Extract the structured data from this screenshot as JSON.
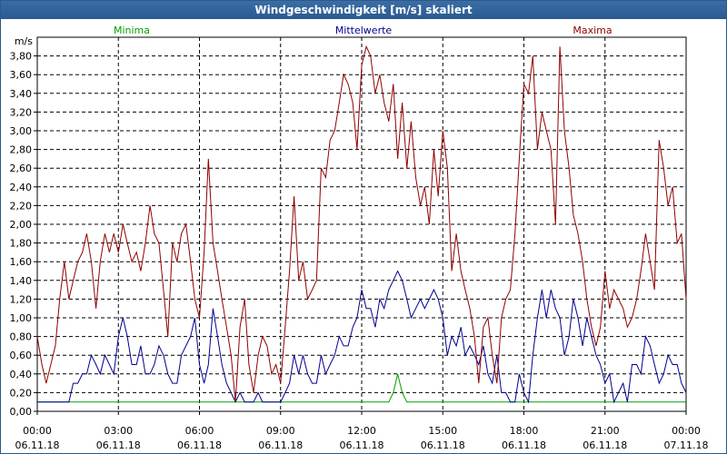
{
  "window": {
    "title": "Windgeschwindigkeit [m/s] skaliert"
  },
  "legend": {
    "minima": {
      "label": "Minima",
      "color": "#00a000"
    },
    "mittelwerte": {
      "label": "Mittelwerte",
      "color": "#000090"
    },
    "maxima": {
      "label": "Maxima",
      "color": "#900000"
    }
  },
  "chart_data": {
    "type": "line",
    "title": "Windgeschwindigkeit [m/s] skaliert",
    "ylabel": "m/s",
    "xlabel": "",
    "ylim": [
      0,
      4.0
    ],
    "xlim_hours": [
      0,
      24
    ],
    "grid": true,
    "legend_placement": "top",
    "y_ticks": [
      "0,00",
      "0,20",
      "0,40",
      "0,60",
      "0,80",
      "1,00",
      "1,20",
      "1,40",
      "1,60",
      "1,80",
      "2,00",
      "2,20",
      "2,40",
      "2,60",
      "2,80",
      "3,00",
      "3,20",
      "3,40",
      "3,60",
      "3,80"
    ],
    "x_ticks": [
      {
        "time": "00:00",
        "date": "06.11.18"
      },
      {
        "time": "03:00",
        "date": "06.11.18"
      },
      {
        "time": "06:00",
        "date": "06.11.18"
      },
      {
        "time": "09:00",
        "date": "06.11.18"
      },
      {
        "time": "12:00",
        "date": "06.11.18"
      },
      {
        "time": "15:00",
        "date": "06.11.18"
      },
      {
        "time": "18:00",
        "date": "06.11.18"
      },
      {
        "time": "21:00",
        "date": "06.11.18"
      },
      {
        "time": "00:00",
        "date": "07.11.18"
      }
    ],
    "series": [
      {
        "name": "Minima",
        "color": "#00a000",
        "points": [
          [
            0,
            0.1
          ],
          [
            13.0,
            0.1
          ],
          [
            13.17,
            0.2
          ],
          [
            13.33,
            0.4
          ],
          [
            13.5,
            0.2
          ],
          [
            13.67,
            0.1
          ],
          [
            24,
            0.1
          ]
        ]
      },
      {
        "name": "Mittelwerte",
        "color": "#000090",
        "points": [
          [
            0,
            0.1
          ],
          [
            1.17,
            0.1
          ],
          [
            1.33,
            0.3
          ],
          [
            1.5,
            0.3
          ],
          [
            1.67,
            0.4
          ],
          [
            1.83,
            0.4
          ],
          [
            2.0,
            0.6
          ],
          [
            2.17,
            0.5
          ],
          [
            2.33,
            0.4
          ],
          [
            2.5,
            0.6
          ],
          [
            2.67,
            0.5
          ],
          [
            2.83,
            0.4
          ],
          [
            3.0,
            0.8
          ],
          [
            3.17,
            1.0
          ],
          [
            3.33,
            0.8
          ],
          [
            3.5,
            0.5
          ],
          [
            3.67,
            0.5
          ],
          [
            3.83,
            0.7
          ],
          [
            4.0,
            0.4
          ],
          [
            4.17,
            0.4
          ],
          [
            4.33,
            0.5
          ],
          [
            4.5,
            0.7
          ],
          [
            4.67,
            0.6
          ],
          [
            4.83,
            0.4
          ],
          [
            5.0,
            0.3
          ],
          [
            5.17,
            0.3
          ],
          [
            5.33,
            0.6
          ],
          [
            5.5,
            0.7
          ],
          [
            5.67,
            0.8
          ],
          [
            5.83,
            1.0
          ],
          [
            6.0,
            0.5
          ],
          [
            6.17,
            0.3
          ],
          [
            6.33,
            0.5
          ],
          [
            6.5,
            1.1
          ],
          [
            6.67,
            0.8
          ],
          [
            6.83,
            0.5
          ],
          [
            7.0,
            0.3
          ],
          [
            7.17,
            0.2
          ],
          [
            7.33,
            0.1
          ],
          [
            7.5,
            0.2
          ],
          [
            7.67,
            0.1
          ],
          [
            7.83,
            0.1
          ],
          [
            8.0,
            0.1
          ],
          [
            8.17,
            0.2
          ],
          [
            8.33,
            0.1
          ],
          [
            8.5,
            0.1
          ],
          [
            8.67,
            0.1
          ],
          [
            9.0,
            0.1
          ],
          [
            9.17,
            0.2
          ],
          [
            9.33,
            0.3
          ],
          [
            9.5,
            0.6
          ],
          [
            9.67,
            0.4
          ],
          [
            9.83,
            0.6
          ],
          [
            10.0,
            0.4
          ],
          [
            10.17,
            0.3
          ],
          [
            10.33,
            0.3
          ],
          [
            10.5,
            0.6
          ],
          [
            10.67,
            0.4
          ],
          [
            10.83,
            0.5
          ],
          [
            11.0,
            0.6
          ],
          [
            11.17,
            0.8
          ],
          [
            11.33,
            0.7
          ],
          [
            11.5,
            0.7
          ],
          [
            11.67,
            0.9
          ],
          [
            11.83,
            1.0
          ],
          [
            12.0,
            1.3
          ],
          [
            12.17,
            1.1
          ],
          [
            12.33,
            1.1
          ],
          [
            12.5,
            0.9
          ],
          [
            12.67,
            1.2
          ],
          [
            12.83,
            1.1
          ],
          [
            13.0,
            1.3
          ],
          [
            13.17,
            1.4
          ],
          [
            13.33,
            1.5
          ],
          [
            13.5,
            1.4
          ],
          [
            13.67,
            1.2
          ],
          [
            13.83,
            1.0
          ],
          [
            14.0,
            1.1
          ],
          [
            14.17,
            1.2
          ],
          [
            14.33,
            1.1
          ],
          [
            14.5,
            1.2
          ],
          [
            14.67,
            1.3
          ],
          [
            14.83,
            1.2
          ],
          [
            15.0,
            1.0
          ],
          [
            15.17,
            0.6
          ],
          [
            15.33,
            0.8
          ],
          [
            15.5,
            0.7
          ],
          [
            15.67,
            0.9
          ],
          [
            15.83,
            0.6
          ],
          [
            16.0,
            0.7
          ],
          [
            16.17,
            0.6
          ],
          [
            16.33,
            0.5
          ],
          [
            16.5,
            0.7
          ],
          [
            16.67,
            0.4
          ],
          [
            16.83,
            0.3
          ],
          [
            17.0,
            0.6
          ],
          [
            17.17,
            0.2
          ],
          [
            17.33,
            0.2
          ],
          [
            17.5,
            0.1
          ],
          [
            17.67,
            0.1
          ],
          [
            17.83,
            0.4
          ],
          [
            18.0,
            0.2
          ],
          [
            18.17,
            0.1
          ],
          [
            18.33,
            0.6
          ],
          [
            18.5,
            1.0
          ],
          [
            18.67,
            1.3
          ],
          [
            18.83,
            1.0
          ],
          [
            19.0,
            1.3
          ],
          [
            19.17,
            1.1
          ],
          [
            19.33,
            1.0
          ],
          [
            19.5,
            0.6
          ],
          [
            19.67,
            0.8
          ],
          [
            19.83,
            1.2
          ],
          [
            20.0,
            1.0
          ],
          [
            20.17,
            0.7
          ],
          [
            20.33,
            1.0
          ],
          [
            20.5,
            0.8
          ],
          [
            20.67,
            0.6
          ],
          [
            20.83,
            0.5
          ],
          [
            21.0,
            0.3
          ],
          [
            21.17,
            0.4
          ],
          [
            21.33,
            0.1
          ],
          [
            21.5,
            0.2
          ],
          [
            21.67,
            0.3
          ],
          [
            21.83,
            0.1
          ],
          [
            22.0,
            0.5
          ],
          [
            22.17,
            0.5
          ],
          [
            22.33,
            0.4
          ],
          [
            22.5,
            0.8
          ],
          [
            22.67,
            0.7
          ],
          [
            22.83,
            0.5
          ],
          [
            23.0,
            0.3
          ],
          [
            23.17,
            0.4
          ],
          [
            23.33,
            0.6
          ],
          [
            23.5,
            0.5
          ],
          [
            23.67,
            0.5
          ],
          [
            23.83,
            0.3
          ],
          [
            24.0,
            0.2
          ]
        ]
      },
      {
        "name": "Maxima",
        "color": "#900000",
        "points": [
          [
            0,
            0.8
          ],
          [
            0.17,
            0.5
          ],
          [
            0.33,
            0.3
          ],
          [
            0.5,
            0.5
          ],
          [
            0.67,
            0.7
          ],
          [
            0.83,
            1.2
          ],
          [
            1.0,
            1.6
          ],
          [
            1.17,
            1.2
          ],
          [
            1.33,
            1.4
          ],
          [
            1.5,
            1.6
          ],
          [
            1.67,
            1.7
          ],
          [
            1.83,
            1.9
          ],
          [
            2.0,
            1.6
          ],
          [
            2.17,
            1.1
          ],
          [
            2.33,
            1.6
          ],
          [
            2.5,
            1.9
          ],
          [
            2.67,
            1.7
          ],
          [
            2.83,
            1.9
          ],
          [
            3.0,
            1.7
          ],
          [
            3.17,
            2.0
          ],
          [
            3.33,
            1.8
          ],
          [
            3.5,
            1.6
          ],
          [
            3.67,
            1.7
          ],
          [
            3.83,
            1.5
          ],
          [
            4.0,
            1.8
          ],
          [
            4.17,
            2.2
          ],
          [
            4.33,
            1.9
          ],
          [
            4.5,
            1.8
          ],
          [
            4.67,
            1.3
          ],
          [
            4.83,
            0.8
          ],
          [
            5.0,
            1.8
          ],
          [
            5.17,
            1.6
          ],
          [
            5.33,
            1.9
          ],
          [
            5.5,
            2.0
          ],
          [
            5.67,
            1.6
          ],
          [
            5.83,
            1.2
          ],
          [
            6.0,
            1.0
          ],
          [
            6.17,
            1.7
          ],
          [
            6.33,
            2.7
          ],
          [
            6.5,
            1.8
          ],
          [
            6.67,
            1.5
          ],
          [
            6.83,
            1.2
          ],
          [
            7.0,
            0.9
          ],
          [
            7.17,
            0.6
          ],
          [
            7.33,
            0.1
          ],
          [
            7.5,
            0.9
          ],
          [
            7.67,
            1.2
          ],
          [
            7.83,
            0.5
          ],
          [
            8.0,
            0.2
          ],
          [
            8.17,
            0.6
          ],
          [
            8.33,
            0.8
          ],
          [
            8.5,
            0.7
          ],
          [
            8.67,
            0.4
          ],
          [
            8.83,
            0.5
          ],
          [
            9.0,
            0.3
          ],
          [
            9.17,
            0.9
          ],
          [
            9.33,
            1.5
          ],
          [
            9.5,
            2.3
          ],
          [
            9.67,
            1.4
          ],
          [
            9.83,
            1.6
          ],
          [
            10.0,
            1.2
          ],
          [
            10.17,
            1.3
          ],
          [
            10.33,
            1.4
          ],
          [
            10.5,
            2.6
          ],
          [
            10.67,
            2.5
          ],
          [
            10.83,
            2.9
          ],
          [
            11.0,
            3.0
          ],
          [
            11.17,
            3.3
          ],
          [
            11.33,
            3.6
          ],
          [
            11.5,
            3.5
          ],
          [
            11.67,
            3.3
          ],
          [
            11.83,
            2.8
          ],
          [
            12.0,
            3.7
          ],
          [
            12.17,
            3.9
          ],
          [
            12.33,
            3.8
          ],
          [
            12.5,
            3.4
          ],
          [
            12.67,
            3.6
          ],
          [
            12.83,
            3.3
          ],
          [
            13.0,
            3.1
          ],
          [
            13.17,
            3.5
          ],
          [
            13.33,
            2.7
          ],
          [
            13.5,
            3.3
          ],
          [
            13.67,
            2.6
          ],
          [
            13.83,
            3.1
          ],
          [
            14.0,
            2.5
          ],
          [
            14.17,
            2.2
          ],
          [
            14.33,
            2.4
          ],
          [
            14.5,
            2.0
          ],
          [
            14.67,
            2.8
          ],
          [
            14.83,
            2.3
          ],
          [
            15.0,
            3.0
          ],
          [
            15.17,
            2.6
          ],
          [
            15.33,
            1.5
          ],
          [
            15.5,
            1.9
          ],
          [
            15.67,
            1.5
          ],
          [
            15.83,
            1.3
          ],
          [
            16.0,
            1.1
          ],
          [
            16.17,
            0.8
          ],
          [
            16.33,
            0.3
          ],
          [
            16.5,
            0.9
          ],
          [
            16.67,
            1.0
          ],
          [
            16.83,
            0.6
          ],
          [
            17.0,
            0.3
          ],
          [
            17.17,
            1.0
          ],
          [
            17.33,
            1.2
          ],
          [
            17.5,
            1.3
          ],
          [
            17.67,
            1.9
          ],
          [
            17.83,
            2.7
          ],
          [
            18.0,
            3.5
          ],
          [
            18.17,
            3.4
          ],
          [
            18.33,
            3.8
          ],
          [
            18.5,
            2.8
          ],
          [
            18.67,
            3.2
          ],
          [
            18.83,
            3.0
          ],
          [
            19.0,
            2.8
          ],
          [
            19.17,
            2.0
          ],
          [
            19.33,
            3.9
          ],
          [
            19.5,
            3.0
          ],
          [
            19.67,
            2.6
          ],
          [
            19.83,
            2.1
          ],
          [
            20.0,
            1.9
          ],
          [
            20.17,
            1.6
          ],
          [
            20.33,
            1.2
          ],
          [
            20.5,
            0.9
          ],
          [
            20.67,
            0.7
          ],
          [
            20.83,
            0.9
          ],
          [
            21.0,
            1.5
          ],
          [
            21.17,
            1.1
          ],
          [
            21.33,
            1.3
          ],
          [
            21.5,
            1.2
          ],
          [
            21.67,
            1.1
          ],
          [
            21.83,
            0.9
          ],
          [
            22.0,
            1.0
          ],
          [
            22.17,
            1.2
          ],
          [
            22.33,
            1.5
          ],
          [
            22.5,
            1.9
          ],
          [
            22.67,
            1.6
          ],
          [
            22.83,
            1.3
          ],
          [
            23.0,
            2.9
          ],
          [
            23.17,
            2.6
          ],
          [
            23.33,
            2.2
          ],
          [
            23.5,
            2.4
          ],
          [
            23.67,
            1.8
          ],
          [
            23.83,
            1.9
          ],
          [
            24.0,
            1.2
          ]
        ]
      }
    ]
  }
}
